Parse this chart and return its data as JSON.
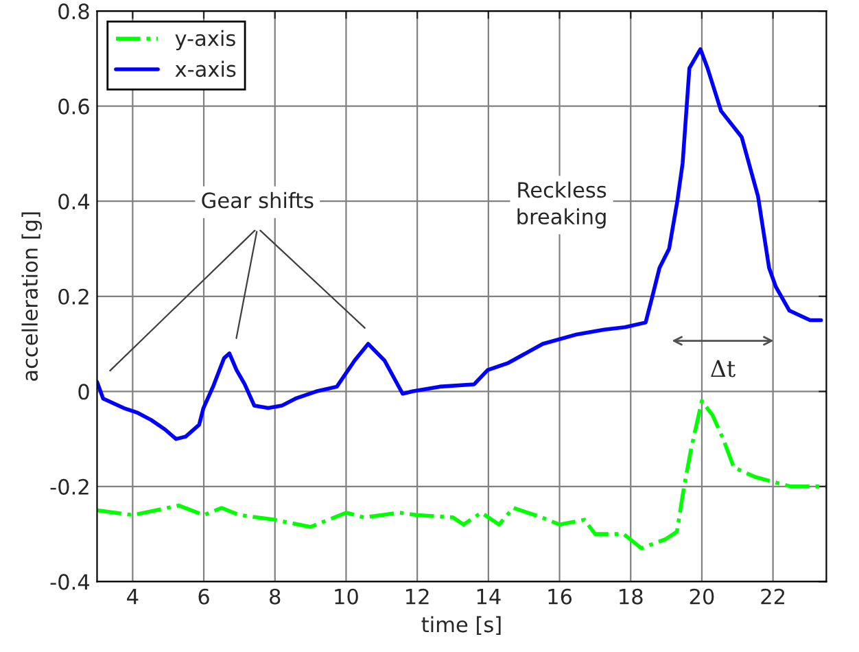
{
  "chart_data": {
    "type": "line",
    "xlabel": "time [s]",
    "ylabel": "accelleration [g]",
    "xlim": [
      3,
      23.5
    ],
    "ylim": [
      -0.4,
      0.8
    ],
    "xticks": [
      4,
      6,
      8,
      10,
      12,
      14,
      16,
      18,
      20,
      22
    ],
    "yticks": [
      -0.4,
      -0.2,
      0,
      0.2,
      0.4,
      0.6,
      0.8
    ],
    "grid": true,
    "legend": "top left",
    "marker": "none",
    "series": [
      {
        "name": "y-axis",
        "color": "#00ff00",
        "line_style": "dashdot",
        "x": [
          3,
          4,
          5.3,
          6,
          6.5,
          7,
          8,
          9,
          10,
          10.5,
          11,
          11.5,
          12,
          13,
          13.3,
          13.8,
          14.3,
          14.7,
          15.5,
          16,
          16.7,
          17,
          17.8,
          18.3,
          19,
          19.3,
          19.5,
          19.7,
          20,
          20.3,
          20.6,
          20.9,
          21.5,
          22,
          22.5,
          23,
          23.5
        ],
        "values": [
          -0.25,
          -0.26,
          -0.24,
          -0.26,
          -0.245,
          -0.26,
          -0.27,
          -0.285,
          -0.255,
          -0.265,
          -0.26,
          -0.255,
          -0.26,
          -0.265,
          -0.28,
          -0.255,
          -0.28,
          -0.245,
          -0.265,
          -0.28,
          -0.27,
          -0.3,
          -0.3,
          -0.33,
          -0.31,
          -0.295,
          -0.2,
          -0.12,
          -0.02,
          -0.05,
          -0.1,
          -0.16,
          -0.18,
          -0.19,
          -0.2,
          -0.2,
          -0.2
        ]
      },
      {
        "name": "x-axis",
        "color": "#0000ff",
        "line_style": "solid",
        "x": [
          3.0,
          3.17,
          3.75,
          4.14,
          4.52,
          4.91,
          5.22,
          5.49,
          5.87,
          5.99,
          6.26,
          6.57,
          6.72,
          6.92,
          7.15,
          7.42,
          7.81,
          8.19,
          8.58,
          9.16,
          9.74,
          10.24,
          10.62,
          11.08,
          11.59,
          11.86,
          12.63,
          13.6,
          13.98,
          14.56,
          15.53,
          16.49,
          17.26,
          17.84,
          18.42,
          18.61,
          18.81,
          19.08,
          19.31,
          19.46,
          19.65,
          19.96,
          20.16,
          20.54,
          21.12,
          21.58,
          21.89,
          22.08,
          22.46,
          23.04,
          23.35
        ],
        "values": [
          0.02,
          -0.015,
          -0.035,
          -0.045,
          -0.06,
          -0.08,
          -0.1,
          -0.095,
          -0.07,
          -0.035,
          0.01,
          0.07,
          0.08,
          0.045,
          0.015,
          -0.03,
          -0.035,
          -0.03,
          -0.015,
          0,
          0.01,
          0.065,
          0.1,
          0.065,
          -0.005,
          0,
          0.01,
          0.015,
          0.045,
          0.06,
          0.1,
          0.12,
          0.13,
          0.135,
          0.145,
          0.2,
          0.26,
          0.3,
          0.4,
          0.48,
          0.68,
          0.72,
          0.68,
          0.59,
          0.535,
          0.41,
          0.26,
          0.22,
          0.17,
          0.15,
          0.15
        ]
      }
    ],
    "annotations": [
      "Gear shifts",
      "Reckless\nbreaking",
      "Δt"
    ]
  }
}
